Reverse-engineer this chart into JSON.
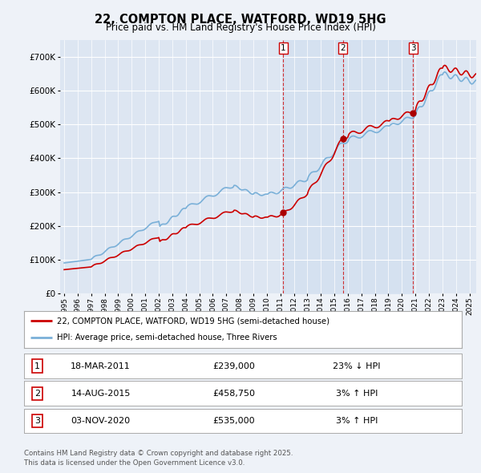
{
  "title": "22, COMPTON PLACE, WATFORD, WD19 5HG",
  "subtitle": "Price paid vs. HM Land Registry's House Price Index (HPI)",
  "background_color": "#eef2f8",
  "plot_background": "#dde6f2",
  "shaded_color": "#d0dff0",
  "legend_line1": "22, COMPTON PLACE, WATFORD, WD19 5HG (semi-detached house)",
  "legend_line2": "HPI: Average price, semi-detached house, Three Rivers",
  "footer": "Contains HM Land Registry data © Crown copyright and database right 2025.\nThis data is licensed under the Open Government Licence v3.0.",
  "transactions": [
    {
      "num": 1,
      "date": "18-MAR-2011",
      "price": "£239,000",
      "change": "23% ↓ HPI",
      "year": 2011.21
    },
    {
      "num": 2,
      "date": "14-AUG-2015",
      "price": "£458,750",
      "change": "3% ↑ HPI",
      "year": 2015.62
    },
    {
      "num": 3,
      "date": "03-NOV-2020",
      "price": "£535,000",
      "change": "3% ↑ HPI",
      "year": 2020.84
    }
  ],
  "hpi_color": "#7ab0d8",
  "price_color": "#cc0000",
  "marker_color": "#aa0000",
  "ylim": [
    0,
    750000
  ],
  "yticks": [
    0,
    100000,
    200000,
    300000,
    400000,
    500000,
    600000,
    700000
  ],
  "xlim_start": 1994.7,
  "xlim_end": 2025.5
}
